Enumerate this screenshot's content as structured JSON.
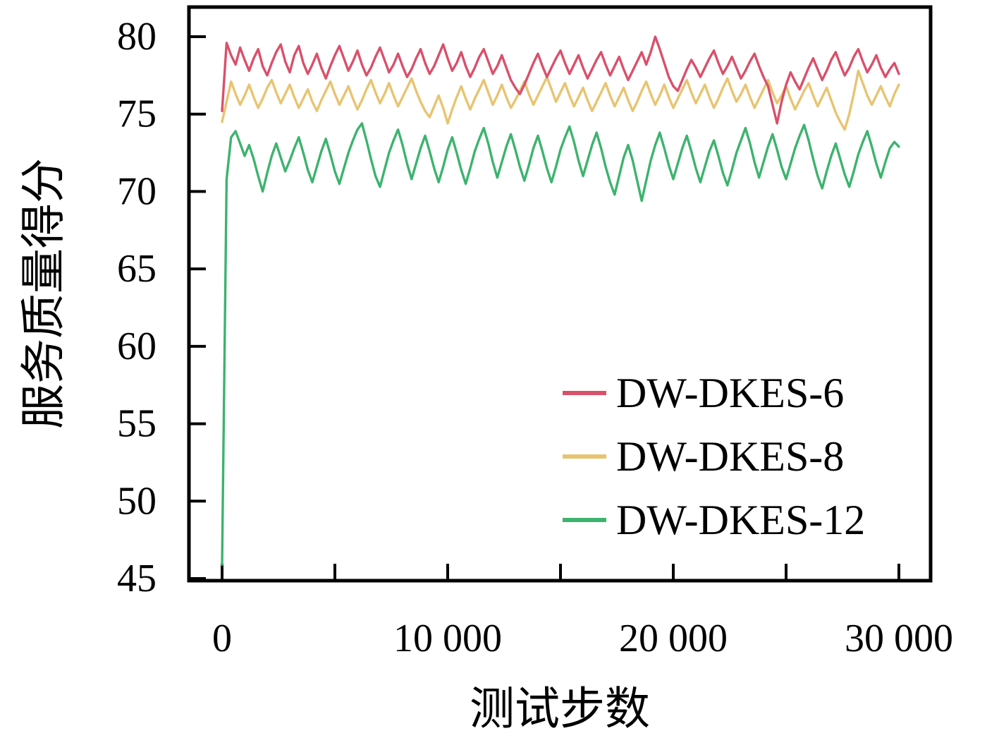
{
  "chart_data": {
    "type": "line",
    "title": "",
    "xlabel": "测试步数",
    "ylabel": "服务质量得分",
    "xlim": [
      0,
      30000
    ],
    "ylim": [
      45,
      80
    ],
    "grid": false,
    "legend_position": "inside center-right",
    "x_ticks": [
      0,
      5000,
      10000,
      15000,
      20000,
      25000,
      30000
    ],
    "x_tick_labels": [
      "0",
      "",
      "10 000",
      "",
      "20 000",
      "",
      "30 000"
    ],
    "y_ticks": [
      45,
      50,
      55,
      60,
      65,
      70,
      75,
      80
    ],
    "y_tick_labels": [
      "45",
      "50",
      "55",
      "60",
      "65",
      "70",
      "75",
      "80"
    ],
    "x_start": 0,
    "x_step": 200,
    "series": [
      {
        "name": "DW-DKES-6",
        "color": "#d9506b",
        "values": [
          75.2,
          79.6,
          78.8,
          78.2,
          79.3,
          78.5,
          77.8,
          78.6,
          79.2,
          78.1,
          77.5,
          78.3,
          79.0,
          79.5,
          78.4,
          77.7,
          78.8,
          79.4,
          78.3,
          77.6,
          78.2,
          78.9,
          78.0,
          77.3,
          78.1,
          78.8,
          79.4,
          78.6,
          77.8,
          78.4,
          79.1,
          78.2,
          77.5,
          78.0,
          78.7,
          79.3,
          78.5,
          77.7,
          78.2,
          78.9,
          78.1,
          77.4,
          77.9,
          78.6,
          79.2,
          78.3,
          77.6,
          78.1,
          78.8,
          79.5,
          78.6,
          77.8,
          78.3,
          79.0,
          78.1,
          77.4,
          78.0,
          78.7,
          79.2,
          78.4,
          77.6,
          78.1,
          78.8,
          78.0,
          77.2,
          76.7,
          76.3,
          76.9,
          77.6,
          78.3,
          78.9,
          78.1,
          77.4,
          78.0,
          78.6,
          79.1,
          78.3,
          77.6,
          78.2,
          78.8,
          78.0,
          77.3,
          77.9,
          78.5,
          79.0,
          78.2,
          77.5,
          78.1,
          78.7,
          77.9,
          77.2,
          77.8,
          78.4,
          79.0,
          78.2,
          79.0,
          80.0,
          79.2,
          78.3,
          77.4,
          76.8,
          76.5,
          77.2,
          77.9,
          78.5,
          78.0,
          77.4,
          78.0,
          78.6,
          79.1,
          78.3,
          77.6,
          78.1,
          78.7,
          78.0,
          77.3,
          77.8,
          78.4,
          78.9,
          78.1,
          77.4,
          76.8,
          75.6,
          74.4,
          75.8,
          76.9,
          77.7,
          77.1,
          76.6,
          77.3,
          78.0,
          78.6,
          77.9,
          77.2,
          77.8,
          78.5,
          79.0,
          78.2,
          77.5,
          78.0,
          78.7,
          79.2,
          78.4,
          77.7,
          78.2,
          78.8,
          78.0,
          77.4,
          77.9,
          78.3,
          77.6
        ]
      },
      {
        "name": "DW-DKES-8",
        "color": "#e8c471",
        "values": [
          74.5,
          75.8,
          77.1,
          76.3,
          75.6,
          76.2,
          76.9,
          76.1,
          75.4,
          76.0,
          76.7,
          77.2,
          76.4,
          75.7,
          76.3,
          76.9,
          76.1,
          75.4,
          76.0,
          76.6,
          75.8,
          75.2,
          75.9,
          76.5,
          77.1,
          76.3,
          75.6,
          76.2,
          76.8,
          76.0,
          75.3,
          75.9,
          76.6,
          77.2,
          76.4,
          75.7,
          76.3,
          77.0,
          76.2,
          75.5,
          76.1,
          76.7,
          77.3,
          76.5,
          75.8,
          75.2,
          74.8,
          75.5,
          76.2,
          75.4,
          74.4,
          75.3,
          76.1,
          76.8,
          76.0,
          75.3,
          76.0,
          76.6,
          77.2,
          76.4,
          75.6,
          76.2,
          76.9,
          76.1,
          75.4,
          75.9,
          76.5,
          77.1,
          76.3,
          75.6,
          76.2,
          76.8,
          77.4,
          76.6,
          75.8,
          76.4,
          77.0,
          76.2,
          75.5,
          76.1,
          76.7,
          75.9,
          75.2,
          75.8,
          76.4,
          77.0,
          76.2,
          75.5,
          76.1,
          76.7,
          75.9,
          75.2,
          75.8,
          76.5,
          77.1,
          76.3,
          75.6,
          76.2,
          76.9,
          76.1,
          75.4,
          76.0,
          76.6,
          77.2,
          76.4,
          75.7,
          76.3,
          76.9,
          76.1,
          75.4,
          76.0,
          76.7,
          77.3,
          76.5,
          75.8,
          76.3,
          76.9,
          76.1,
          75.4,
          76.0,
          76.6,
          77.2,
          76.4,
          75.7,
          76.2,
          76.8,
          76.0,
          75.3,
          75.9,
          76.5,
          77.0,
          76.2,
          75.5,
          76.1,
          76.7,
          75.9,
          75.1,
          74.5,
          74.0,
          75.0,
          76.3,
          77.8,
          77.0,
          76.2,
          75.6,
          76.2,
          76.8,
          76.1,
          75.5,
          76.3,
          76.9
        ]
      },
      {
        "name": "DW-DKES-12",
        "color": "#3db36e",
        "values": [
          45.9,
          70.8,
          73.5,
          73.9,
          73.1,
          72.3,
          73.0,
          72.1,
          71.0,
          70.0,
          71.2,
          72.3,
          73.1,
          72.2,
          71.3,
          72.0,
          72.8,
          73.5,
          72.5,
          71.4,
          70.6,
          71.6,
          72.6,
          73.4,
          72.4,
          71.3,
          70.5,
          71.5,
          72.5,
          73.3,
          74.0,
          74.4,
          73.3,
          72.1,
          71.0,
          70.3,
          71.4,
          72.5,
          73.3,
          74.0,
          73.0,
          71.8,
          70.8,
          71.8,
          72.8,
          73.6,
          72.6,
          71.5,
          70.6,
          71.6,
          72.7,
          73.5,
          72.5,
          71.4,
          70.5,
          71.5,
          72.6,
          73.4,
          74.1,
          73.1,
          71.9,
          70.9,
          71.9,
          72.9,
          73.7,
          72.7,
          71.6,
          70.7,
          71.7,
          72.8,
          73.6,
          72.6,
          71.5,
          70.6,
          71.6,
          72.7,
          73.5,
          74.2,
          73.2,
          72.0,
          71.0,
          72.0,
          73.0,
          73.8,
          72.8,
          71.6,
          70.6,
          69.8,
          71.0,
          72.2,
          73.0,
          72.0,
          70.7,
          69.4,
          70.7,
          72.0,
          73.0,
          73.8,
          72.8,
          71.7,
          70.8,
          71.8,
          72.8,
          73.6,
          72.6,
          71.5,
          70.6,
          71.6,
          72.6,
          73.3,
          72.3,
          71.2,
          70.4,
          71.4,
          72.5,
          73.3,
          74.1,
          73.1,
          71.9,
          70.9,
          71.9,
          72.9,
          73.7,
          72.7,
          71.6,
          70.8,
          71.8,
          72.8,
          73.6,
          74.3,
          73.3,
          72.1,
          71.0,
          70.2,
          71.3,
          72.3,
          73.1,
          72.1,
          71.1,
          70.3,
          71.3,
          72.4,
          73.2,
          73.9,
          72.9,
          71.8,
          70.9,
          71.9,
          72.8,
          73.2,
          72.9
        ]
      }
    ]
  }
}
